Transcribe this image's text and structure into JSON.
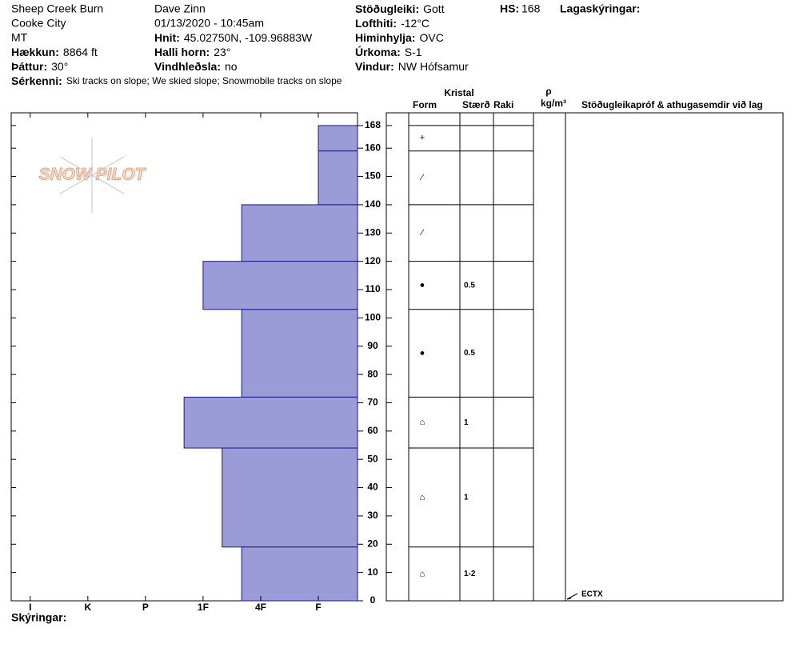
{
  "header": {
    "col1": [
      "Sheep Creek Burn",
      "Cooke City",
      "MT",
      {
        "label": "Hækkun:",
        "value": "8864 ft"
      },
      {
        "label": "Þáttur:",
        "value": "30°"
      },
      {
        "label": "Sérkenni:",
        "value": "Ski tracks on slope; We skied slope; Snowmobile tracks on slope"
      }
    ],
    "col2": [
      "Dave Zinn",
      "01/13/2020 - 10:45am",
      {
        "label": "Hnit:",
        "value": "45.02750N, -109.96883W"
      },
      {
        "label": "Halli horn:",
        "value": "23°"
      },
      {
        "label": "Vindhleðsla:",
        "value": "no"
      }
    ],
    "col3": [
      {
        "label": "Stöðugleiki:",
        "value": "Gott"
      },
      {
        "label": "Lofthiti:",
        "value": "-12°C"
      },
      {
        "label": "Himinhylja:",
        "value": "OVC"
      },
      {
        "label": "Úrkoma:",
        "value": "S-1"
      },
      {
        "label": "Vindur:",
        "value": "NW Hófsamur"
      }
    ],
    "hs_label": "HS:",
    "hs": 168,
    "legend_title": "Lagaskýringar:"
  },
  "logo": "SNOW PILOT",
  "chart_data": {
    "type": "snowprofile",
    "ylim": [
      0,
      172.5
    ],
    "yticks": [
      0,
      10,
      20,
      30,
      40,
      50,
      60,
      70,
      80,
      90,
      100,
      110,
      120,
      130,
      140,
      150,
      160,
      168
    ],
    "xlim": [
      6.33,
      0.32
    ],
    "xticks": [
      {
        "value": 6,
        "label": "I"
      },
      {
        "value": 5,
        "label": "K"
      },
      {
        "value": 4,
        "label": "P"
      },
      {
        "value": 3,
        "label": "1F"
      },
      {
        "value": 2,
        "label": "4F"
      },
      {
        "value": 1,
        "label": "F"
      }
    ],
    "color": "#9b9bd7",
    "edge_color": "#1a1a8c",
    "layers": {
      "top": [
        168,
        159,
        140,
        120,
        103,
        72,
        54,
        19
      ],
      "bottom": [
        159,
        140,
        120,
        103,
        72,
        54,
        19,
        0
      ],
      "hardness": [
        1,
        1,
        2.33,
        3,
        2.33,
        3.33,
        2.67,
        2.33
      ],
      "form": [
        "+",
        "⁄",
        "⁄",
        "●",
        "●",
        "⌂",
        "⌂",
        "⌂"
      ],
      "size": [
        null,
        null,
        null,
        "0.5",
        "0.5",
        "1",
        "1",
        "1-2"
      ]
    },
    "table_headers": {
      "crystal": "Kristal",
      "form": "Form",
      "size": "Stærð",
      "moisture": "Raki",
      "rho": "ρ",
      "density": "kg/m³",
      "tests": "Stöðugleikapróf & athugasemdir við lag"
    },
    "tests": [
      {
        "label": "ECTX",
        "height": 0
      }
    ],
    "footer": "Skýringar:"
  }
}
